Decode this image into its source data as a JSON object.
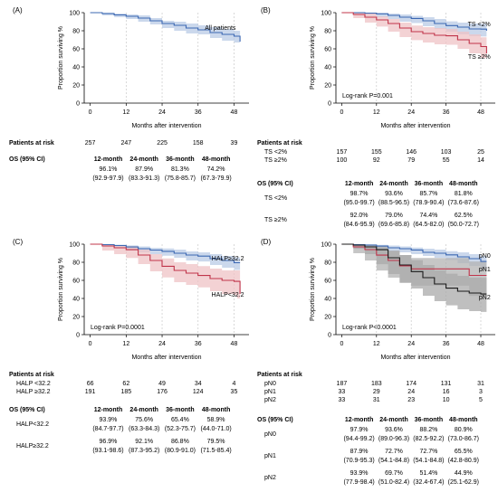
{
  "colors": {
    "blue": "#3b67b2",
    "blue_band": "#b9cbe6",
    "red": "#c0344a",
    "red_band": "#efc3c6",
    "black": "#1a1a1a",
    "grey_band": "#a9a9a9",
    "grid": "#c8c8c8"
  },
  "panels": [
    {
      "id": "A",
      "label": "(A)",
      "ylabel": "Proportion surviving %",
      "xlabel": "Months after intervention",
      "pvalue": "",
      "risk_title": "Patients at risk",
      "risk_rows": [
        {
          "name": "",
          "values": [
            "257",
            "247",
            "225",
            "158",
            "39"
          ]
        }
      ],
      "os_title": "OS  (95% CI)",
      "os_headers": [
        "12-month",
        "24-month",
        "36-month",
        "48-month"
      ],
      "os_rows": [
        {
          "name": "",
          "values": [
            "96.1%",
            "87.9%",
            "81.3%",
            "74.2%"
          ],
          "ci": [
            "(92.9-97.9)",
            "(83.3-91.3)",
            "(75.8-85.7)",
            "(67.3-79.9)"
          ]
        }
      ]
    },
    {
      "id": "B",
      "label": "(B)",
      "ylabel": "Proportion surviving %",
      "xlabel": "Months after intervention",
      "pvalue": "Log-rank P=0.001",
      "risk_title": "Patients at risk",
      "risk_rows": [
        {
          "name": "TS <2%",
          "values": [
            "157",
            "155",
            "146",
            "103",
            "25"
          ]
        },
        {
          "name": "TS ≥2%",
          "values": [
            "100",
            "92",
            "79",
            "55",
            "14"
          ]
        }
      ],
      "os_title": "OS  (95% CI)",
      "os_headers": [
        "12-month",
        "24-month",
        "36-month",
        "48-month"
      ],
      "os_rows": [
        {
          "name": "TS <2%",
          "values": [
            "98.7%",
            "93.6%",
            "85.7%",
            "81.8%"
          ],
          "ci": [
            "(95.0-99.7)",
            "(88.5-96.5)",
            "(78.9-90.4)",
            "(73.6-87.6)"
          ]
        },
        {
          "name": "TS ≥2%",
          "values": [
            "92.0%",
            "79.0%",
            "74.4%",
            "62.5%"
          ],
          "ci": [
            "(84.6-95.9)",
            "(69.6-85.8)",
            "(64.5-82.0)",
            "(50.0-72.7)"
          ]
        }
      ]
    },
    {
      "id": "C",
      "label": "(C)",
      "ylabel": "Proportion surviving %",
      "xlabel": "Months after intervention",
      "pvalue": "Log-rank P=0.0001",
      "risk_title": "Patients at risk",
      "risk_rows": [
        {
          "name": "HALP <32.2",
          "values": [
            "66",
            "62",
            "49",
            "34",
            "4"
          ]
        },
        {
          "name": "HALP ≥32.2",
          "values": [
            "191",
            "185",
            "176",
            "124",
            "35"
          ]
        }
      ],
      "os_title": "OS  (95% CI)",
      "os_headers": [
        "12-month",
        "24-month",
        "36-month",
        "48-month"
      ],
      "os_rows": [
        {
          "name": "HALP<32.2",
          "values": [
            "93.9%",
            "75.6%",
            "65.4%",
            "58.9%"
          ],
          "ci": [
            "(84.7-97.7)",
            "(63.3-84.3)",
            "(52.3-75.7)",
            "(44.0-71.0)"
          ]
        },
        {
          "name": "HALP≥32.2",
          "values": [
            "96.9%",
            "92.1%",
            "86.8%",
            "79.5%"
          ],
          "ci": [
            "(93.1-98.6)",
            "(87.3-95.2)",
            "(80.9-91.0)",
            "(71.5-85.4)"
          ]
        }
      ]
    },
    {
      "id": "D",
      "label": "(D)",
      "ylabel": "Proportion surviving %",
      "xlabel": "Months after intervention",
      "pvalue": "Log-rank P<0.0001",
      "risk_title": "Patients at risk",
      "risk_rows": [
        {
          "name": "pN0",
          "values": [
            "187",
            "183",
            "174",
            "131",
            "31"
          ]
        },
        {
          "name": "pN1",
          "values": [
            "33",
            "29",
            "24",
            "16",
            "3"
          ]
        },
        {
          "name": "pN2",
          "values": [
            "33",
            "31",
            "23",
            "10",
            "5"
          ]
        }
      ],
      "os_title": "OS  (95% CI)",
      "os_headers": [
        "12-month",
        "24-month",
        "36-month",
        "48-month"
      ],
      "os_rows": [
        {
          "name": "pN0",
          "values": [
            "97.9%",
            "93.6%",
            "88.2%",
            "80.9%"
          ],
          "ci": [
            "(94.4-99.2)",
            "(89.0-96.3)",
            "(82.5-92.2)",
            "(73.0-86.7)"
          ]
        },
        {
          "name": "pN1",
          "values": [
            "87.9%",
            "72.7%",
            "72.7%",
            "65.5%"
          ],
          "ci": [
            "(70.9-95.3)",
            "(54.1-84.8)",
            "(54.1-84.8)",
            "(42.8-80.9)"
          ]
        },
        {
          "name": "pN2",
          "values": [
            "93.9%",
            "69.7%",
            "51.4%",
            "44.9%"
          ],
          "ci": [
            "(77.9-98.4)",
            "(51.0-82.4)",
            "(32.4-67.4)",
            "(25.1-62.9)"
          ]
        }
      ]
    }
  ],
  "chart_data": [
    {
      "type": "line",
      "panel": "A",
      "xlabel": "Months after intervention",
      "ylabel": "Proportion surviving %",
      "xticks": [
        0,
        12,
        24,
        36,
        48
      ],
      "yticks": [
        0,
        20,
        40,
        60,
        80,
        100
      ],
      "xlim": [
        -2,
        53
      ],
      "ylim": [
        0,
        100
      ],
      "grid_x": true,
      "series": [
        {
          "name": "All patients",
          "color": "#3b67b2",
          "band_color": "#b9cbe6",
          "label_color": "#3b67b2",
          "x": [
            0,
            4,
            8,
            12,
            16,
            20,
            24,
            28,
            32,
            36,
            40,
            44,
            48,
            50
          ],
          "y": [
            100,
            99,
            97.5,
            96,
            94,
            91,
            88,
            86,
            83,
            81,
            78,
            76,
            74,
            68
          ],
          "lo": [
            100,
            97,
            95,
            93,
            90,
            87,
            83,
            80,
            77,
            76,
            72,
            69,
            67,
            60
          ],
          "hi": [
            100,
            100,
            99,
            98,
            97,
            94,
            91,
            90,
            88,
            86,
            84,
            82,
            80,
            76
          ]
        }
      ]
    },
    {
      "type": "line",
      "panel": "B",
      "xlabel": "Months after intervention",
      "ylabel": "Proportion surviving %",
      "xticks": [
        0,
        12,
        24,
        36,
        48
      ],
      "yticks": [
        0,
        20,
        40,
        60,
        80,
        100
      ],
      "xlim": [
        -2,
        53
      ],
      "ylim": [
        0,
        100
      ],
      "grid_x": true,
      "series": [
        {
          "name": "TS <2%",
          "color": "#3b67b2",
          "band_color": "#b9cbe6",
          "label_color": "#3b67b2",
          "x": [
            0,
            4,
            8,
            12,
            16,
            20,
            24,
            28,
            32,
            36,
            40,
            44,
            48,
            50
          ],
          "y": [
            100,
            100,
            99.5,
            98.7,
            97,
            95,
            93.6,
            91,
            88,
            85.7,
            84,
            82,
            81.8,
            80
          ],
          "lo": [
            100,
            99,
            97,
            95,
            93,
            90,
            88.5,
            85,
            82,
            78.9,
            76,
            74,
            73.6,
            70
          ],
          "hi": [
            100,
            100,
            100,
            99.7,
            99,
            98,
            96.5,
            95,
            93,
            90.4,
            89,
            88,
            87.6,
            86
          ]
        },
        {
          "name": "TS ≥2%",
          "color": "#c0344a",
          "band_color": "#efc3c6",
          "label_color": "#c0344a",
          "x": [
            0,
            4,
            8,
            12,
            16,
            20,
            24,
            28,
            32,
            36,
            40,
            44,
            48,
            50
          ],
          "y": [
            100,
            98,
            95,
            92,
            88,
            83,
            79,
            77,
            75,
            74.4,
            70,
            66,
            62.5,
            55
          ],
          "lo": [
            100,
            94,
            89,
            84.6,
            79,
            73,
            69.6,
            67,
            65,
            64.5,
            60,
            55,
            50,
            38
          ],
          "hi": [
            100,
            100,
            99,
            95.9,
            93,
            89,
            85.8,
            84,
            83,
            82,
            79,
            76,
            72.7,
            68
          ]
        }
      ]
    },
    {
      "type": "line",
      "panel": "C",
      "xlabel": "Months after intervention",
      "ylabel": "Proportion surviving %",
      "xticks": [
        0,
        12,
        24,
        36,
        48
      ],
      "yticks": [
        0,
        20,
        40,
        60,
        80,
        100
      ],
      "xlim": [
        -2,
        53
      ],
      "ylim": [
        0,
        100
      ],
      "grid_x": true,
      "series": [
        {
          "name": "HALP≥32.2",
          "color": "#3b67b2",
          "band_color": "#b9cbe6",
          "label_color": "#3b67b2",
          "x": [
            0,
            4,
            8,
            12,
            16,
            20,
            24,
            28,
            32,
            36,
            40,
            44,
            48,
            50
          ],
          "y": [
            100,
            99.5,
            98.5,
            96.9,
            95,
            93.5,
            92.1,
            90,
            88,
            86.8,
            84,
            82,
            79.5,
            79.5
          ],
          "lo": [
            100,
            98,
            96,
            93.1,
            91,
            89,
            87.3,
            85,
            82,
            80.9,
            77,
            74,
            71.5,
            70
          ],
          "hi": [
            100,
            100,
            99.5,
            98.6,
            97.5,
            96,
            95.2,
            94,
            92,
            91,
            89,
            87,
            85.4,
            86
          ]
        },
        {
          "name": "HALP<32.2",
          "color": "#c0344a",
          "band_color": "#efc3c6",
          "label_color": "#c0344a",
          "x": [
            0,
            4,
            8,
            12,
            16,
            20,
            24,
            28,
            32,
            36,
            40,
            44,
            48,
            49,
            50
          ],
          "y": [
            100,
            98,
            96,
            93.9,
            88,
            82,
            75.6,
            71,
            68,
            65.4,
            62,
            60,
            58.9,
            58.9,
            45
          ],
          "lo": [
            100,
            93,
            89,
            84.7,
            78,
            70,
            63.3,
            58,
            55,
            52.3,
            48,
            45,
            44,
            40,
            28
          ],
          "hi": [
            100,
            100,
            99,
            97.7,
            94,
            89,
            84.3,
            80,
            78,
            75.7,
            73,
            71,
            71,
            71,
            68
          ]
        }
      ]
    },
    {
      "type": "line",
      "panel": "D",
      "xlabel": "Months after intervention",
      "ylabel": "Proportion surviving %",
      "xticks": [
        0,
        12,
        24,
        36,
        48
      ],
      "yticks": [
        0,
        20,
        40,
        60,
        80,
        100
      ],
      "xlim": [
        -2,
        53
      ],
      "ylim": [
        0,
        100
      ],
      "grid_x": true,
      "series": [
        {
          "name": "pN0",
          "color": "#3b67b2",
          "band_color": "#b9cbe6",
          "label_color": "#3b67b2",
          "x": [
            0,
            4,
            8,
            12,
            16,
            20,
            24,
            28,
            32,
            36,
            40,
            44,
            48,
            50
          ],
          "y": [
            100,
            99.5,
            99,
            97.9,
            96,
            95,
            93.6,
            91,
            90,
            88.2,
            86,
            84,
            80.9,
            80.9
          ],
          "lo": [
            100,
            98.5,
            97,
            94.4,
            92,
            91,
            89,
            87,
            85,
            82.5,
            79,
            76,
            73,
            73
          ],
          "hi": [
            100,
            100,
            100,
            99.2,
            98.5,
            97.5,
            96.3,
            95,
            94,
            92.2,
            91,
            89,
            86.7,
            87
          ]
        },
        {
          "name": "pN1",
          "color": "#c0344a",
          "band_color": "#b3b3b3",
          "label_color": "#c0344a",
          "x": [
            0,
            4,
            8,
            12,
            16,
            20,
            24,
            28,
            32,
            36,
            40,
            44,
            48,
            50
          ],
          "y": [
            100,
            97,
            94,
            87.9,
            82,
            76,
            72.7,
            72.7,
            72.7,
            72.7,
            72.7,
            65.5,
            65.5,
            65.5
          ],
          "lo": [
            100,
            90,
            82,
            70.9,
            63,
            57,
            54.1,
            54.1,
            54.1,
            54.1,
            54.1,
            42.8,
            42.8,
            42.8
          ],
          "hi": [
            100,
            100,
            99,
            95.3,
            92,
            88,
            84.8,
            84.8,
            84.8,
            84.8,
            84.8,
            80.9,
            80.9,
            80.9
          ]
        },
        {
          "name": "pN2",
          "color": "#1a1a1a",
          "band_color": "#a9a9a9",
          "label_color": "#1a1a1a",
          "x": [
            0,
            4,
            8,
            12,
            16,
            20,
            24,
            28,
            32,
            36,
            40,
            44,
            48,
            50
          ],
          "y": [
            100,
            99,
            97,
            93.9,
            85,
            77,
            69.7,
            63,
            56,
            51.4,
            48,
            46,
            44.9,
            44.9
          ],
          "lo": [
            100,
            95,
            89,
            77.9,
            67,
            58,
            51,
            43,
            37,
            32.4,
            28,
            26,
            25.1,
            25.1
          ],
          "hi": [
            100,
            100,
            99.5,
            98.4,
            93,
            88,
            82.4,
            77,
            71,
            67.4,
            65,
            63,
            62.9,
            63
          ]
        }
      ]
    }
  ]
}
